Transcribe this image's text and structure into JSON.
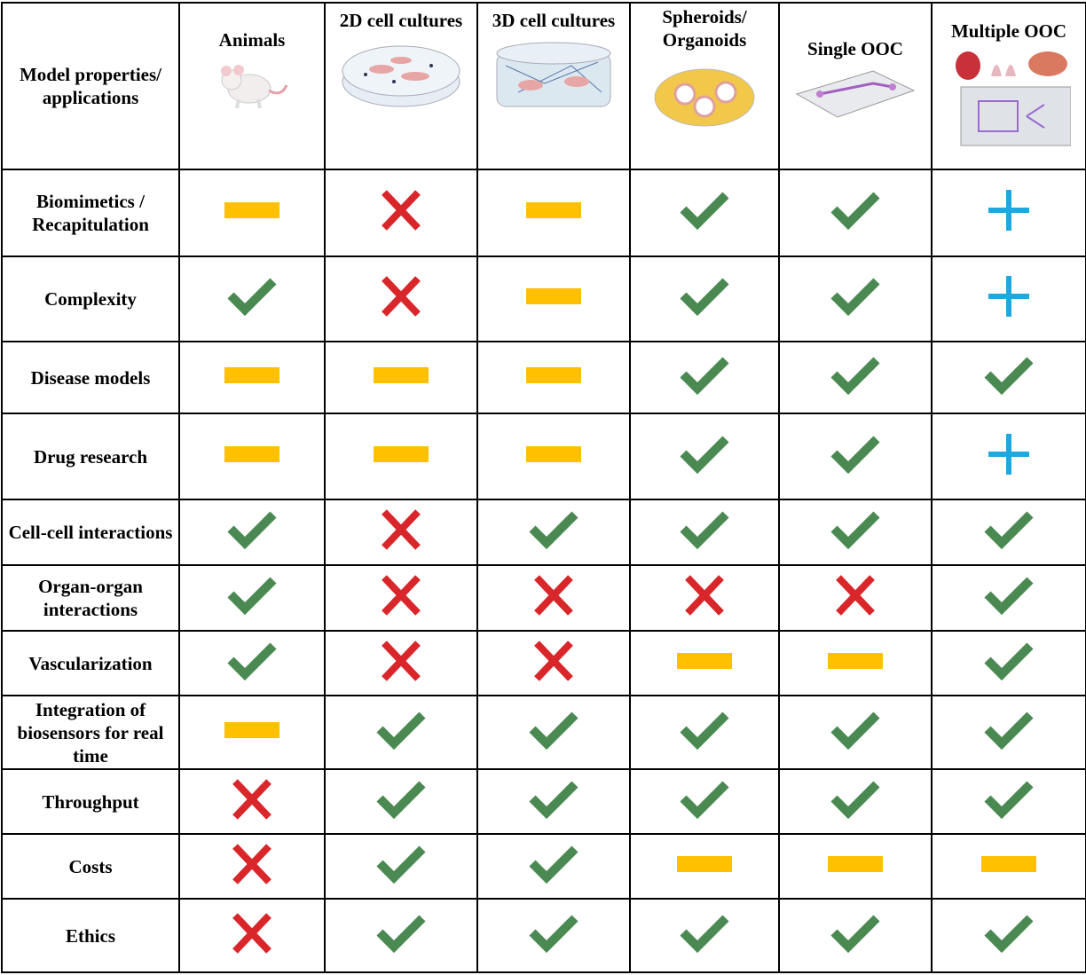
{
  "header": {
    "corner": "Model properties/ applications",
    "columns": [
      "Animals",
      "2D cell cultures",
      "3D cell cultures",
      "Spheroids/ Organoids",
      "Single OOC",
      "Multiple OOC"
    ]
  },
  "rows": [
    "Biomimetics / Recapitulation",
    "Complexity",
    "Disease models",
    "Drug research",
    "Cell-cell interactions",
    "Organ-organ interactions",
    "Vascularization",
    "Integration of biosensors for real time",
    "Throughput",
    "Costs",
    "Ethics"
  ]
}
